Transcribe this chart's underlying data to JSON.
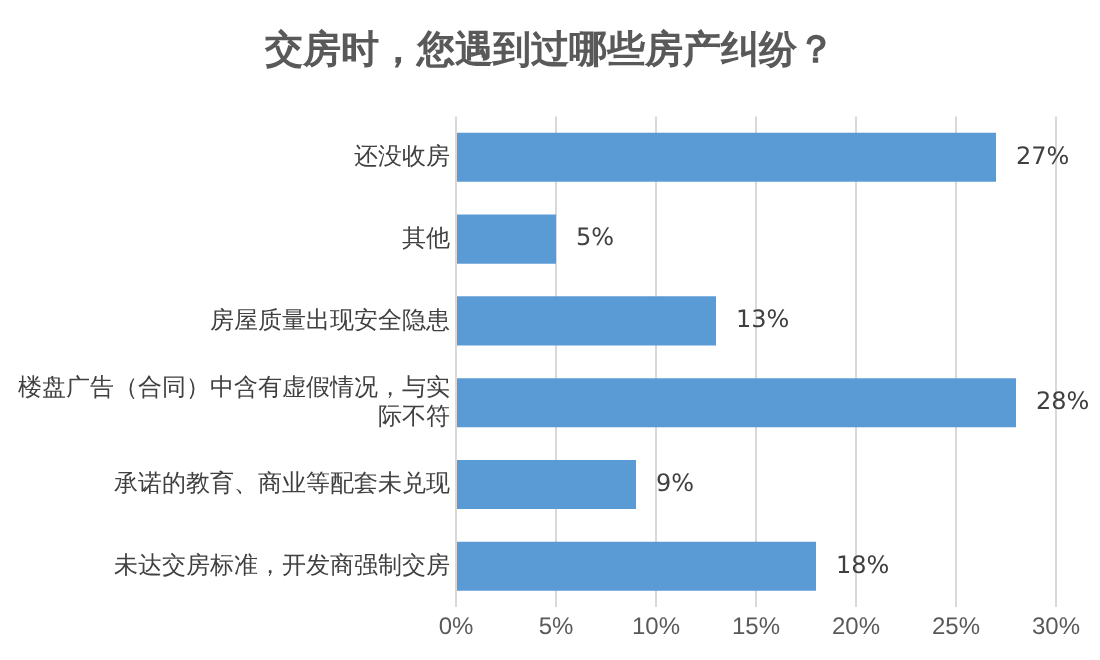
{
  "chart_data": {
    "type": "bar",
    "orientation": "horizontal",
    "title": "交房时，您遇到过哪些房产纠纷？",
    "categories": [
      "还没收房",
      "其他",
      "房屋质量出现安全隐患",
      "楼盘广告（合同）中含有虚假情况，与实际不符",
      "承诺的教育、商业等配套未兑现",
      "未达交房标准，开发商强制交房"
    ],
    "values": [
      27,
      5,
      13,
      28,
      9,
      18
    ],
    "value_labels": [
      "27%",
      "5%",
      "13%",
      "28%",
      "9%",
      "18%"
    ],
    "color": "#5b9bd5",
    "xlim": [
      0,
      30
    ],
    "xticks": [
      {
        "value": 0,
        "label": "0%"
      },
      {
        "value": 5,
        "label": "5%"
      },
      {
        "value": 10,
        "label": "10%"
      },
      {
        "value": 15,
        "label": "15%"
      },
      {
        "value": 20,
        "label": "20%"
      },
      {
        "value": 25,
        "label": "25%"
      },
      {
        "value": 30,
        "label": "30%"
      }
    ],
    "grid": "x",
    "legend": false
  }
}
